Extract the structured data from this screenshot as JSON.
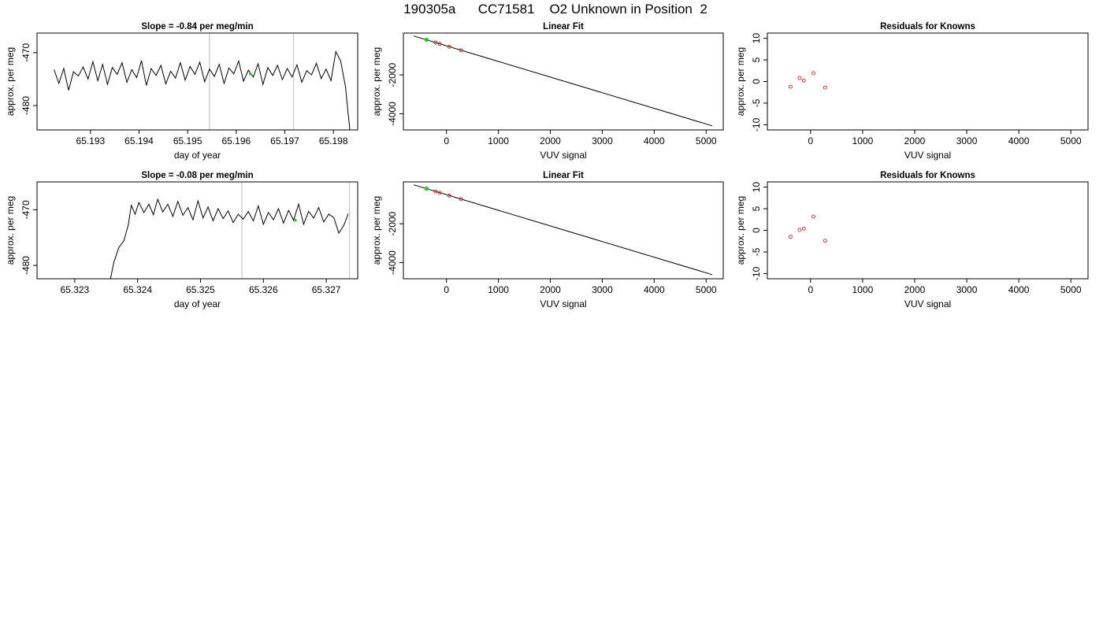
{
  "page_title": "190305a      CC71581    O2 Unknown in Position  2",
  "colors": {
    "line": "#000000",
    "frame": "#000000",
    "marker_lines": "#c8c8c8",
    "points_known": "#cc2222",
    "point_unknown": "#22cc22"
  },
  "chart_data": [
    {
      "type": "line",
      "title": "Slope =  -0.84  per meg/min",
      "xlabel": "day of year",
      "ylabel": "approx. per meg",
      "xlim": [
        65.1919,
        65.1985
      ],
      "ylim": [
        -484.6,
        -466.3
      ],
      "xticks": [
        "65.193",
        "65.194",
        "65.195",
        "65.196",
        "65.197",
        "65.198"
      ],
      "yticks": [
        "-480",
        "-470"
      ],
      "vlines": [
        65.19545,
        65.19718
      ],
      "highlight_point": {
        "x": 65.19629,
        "y": -474.0
      },
      "grid": false,
      "series": [
        {
          "values": [
            [
              65.19225,
              -473.2
            ],
            [
              65.19235,
              -475.8
            ],
            [
              65.19245,
              -473.0
            ],
            [
              65.19255,
              -477.1
            ],
            [
              65.19265,
              -473.6
            ],
            [
              65.19275,
              -474.4
            ],
            [
              65.19285,
              -472.7
            ],
            [
              65.19295,
              -475.0
            ],
            [
              65.19305,
              -471.7
            ],
            [
              65.19315,
              -475.3
            ],
            [
              65.19325,
              -472.2
            ],
            [
              65.19335,
              -476.0
            ],
            [
              65.19345,
              -472.8
            ],
            [
              65.19355,
              -474.1
            ],
            [
              65.19365,
              -471.9
            ],
            [
              65.19375,
              -475.6
            ],
            [
              65.19385,
              -473.2
            ],
            [
              65.19395,
              -474.7
            ],
            [
              65.19405,
              -471.5
            ],
            [
              65.19415,
              -476.2
            ],
            [
              65.19425,
              -473.0
            ],
            [
              65.19435,
              -474.3
            ],
            [
              65.19445,
              -472.4
            ],
            [
              65.19455,
              -475.9
            ],
            [
              65.19465,
              -473.5
            ],
            [
              65.19475,
              -474.8
            ],
            [
              65.19485,
              -471.9
            ],
            [
              65.19495,
              -475.2
            ],
            [
              65.19505,
              -472.6
            ],
            [
              65.19515,
              -474.1
            ],
            [
              65.19525,
              -471.8
            ],
            [
              65.19535,
              -475.5
            ],
            [
              65.19545,
              -473.1
            ],
            [
              65.19555,
              -474.5
            ],
            [
              65.19565,
              -472.2
            ],
            [
              65.19575,
              -475.8
            ],
            [
              65.19585,
              -472.9
            ],
            [
              65.19595,
              -474.0
            ],
            [
              65.19605,
              -471.6
            ],
            [
              65.19615,
              -475.4
            ],
            [
              65.19625,
              -473.3
            ],
            [
              65.19635,
              -474.6
            ],
            [
              65.19645,
              -472.1
            ],
            [
              65.19655,
              -476.0
            ],
            [
              65.19665,
              -472.8
            ],
            [
              65.19675,
              -474.3
            ],
            [
              65.19685,
              -472.4
            ],
            [
              65.19695,
              -475.1
            ],
            [
              65.19705,
              -473.0
            ],
            [
              65.19715,
              -474.6
            ],
            [
              65.19725,
              -472.3
            ],
            [
              65.19735,
              -475.6
            ],
            [
              65.19745,
              -473.4
            ],
            [
              65.19755,
              -474.2
            ],
            [
              65.19765,
              -472.0
            ],
            [
              65.19775,
              -474.9
            ],
            [
              65.19785,
              -473.1
            ],
            [
              65.19795,
              -475.3
            ],
            [
              65.19805,
              -469.8
            ],
            [
              65.19815,
              -471.6
            ],
            [
              65.19825,
              -476.5
            ],
            [
              65.1983,
              -481.2
            ],
            [
              65.19835,
              -485.5
            ]
          ]
        }
      ]
    },
    {
      "type": "scatter",
      "title": "Linear Fit",
      "xlabel": "VUV signal",
      "ylabel": "approx. per meg",
      "xlim": [
        -830,
        5330
      ],
      "ylim": [
        -4830,
        150
      ],
      "xticks": [
        "0",
        "1000",
        "2000",
        "3000",
        "4000",
        "5000"
      ],
      "yticks": [
        "-4000",
        "-2000"
      ],
      "fit_line": [
        [
          -630,
          0
        ],
        [
          5120,
          -4620
        ]
      ],
      "known_points": [
        [
          -385,
          -200
        ],
        [
          -210,
          -340
        ],
        [
          -130,
          -405
        ],
        [
          55,
          -555
        ],
        [
          280,
          -735
        ]
      ],
      "unknown_point": [
        -380,
        -190
      ],
      "grid": false
    },
    {
      "type": "scatter",
      "title": "Residuals for Knowns",
      "xlabel": "VUV signal",
      "ylabel": "approx. per meg",
      "xlim": [
        -830,
        5330
      ],
      "ylim": [
        -11.2,
        11.2
      ],
      "xticks": [
        "0",
        "1000",
        "2000",
        "3000",
        "4000",
        "5000"
      ],
      "yticks": [
        "-10",
        "-5",
        "0",
        "5",
        "10"
      ],
      "points": [
        [
          -385,
          -1.2
        ],
        [
          -210,
          0.8
        ],
        [
          -130,
          0.2
        ],
        [
          55,
          1.9
        ],
        [
          280,
          -1.4
        ]
      ],
      "grid": false
    },
    {
      "type": "line",
      "title": "Slope =  -0.08  per meg/min",
      "xlabel": "day of year",
      "ylabel": "approx. per meg",
      "xlim": [
        65.3224,
        65.3275
      ],
      "ylim": [
        -482.4,
        -465.0
      ],
      "xticks": [
        "65.323",
        "65.324",
        "65.325",
        "65.326",
        "65.327"
      ],
      "yticks": [
        "-480",
        "-470"
      ],
      "vlines": [
        65.32566,
        65.32737
      ],
      "highlight_point": {
        "x": 65.32651,
        "y": -471.9
      },
      "grid": false,
      "series": [
        {
          "values": [
            [
              65.32355,
              -483.5
            ],
            [
              65.32362,
              -479.5
            ],
            [
              65.3237,
              -476.8
            ],
            [
              65.32378,
              -475.6
            ],
            [
              65.32385,
              -472.8
            ],
            [
              65.3239,
              -469.2
            ],
            [
              65.32396,
              -470.8
            ],
            [
              65.32402,
              -468.7
            ],
            [
              65.3241,
              -470.5
            ],
            [
              65.32418,
              -469.0
            ],
            [
              65.32425,
              -470.9
            ],
            [
              65.32432,
              -468.1
            ],
            [
              65.3244,
              -470.4
            ],
            [
              65.32448,
              -469.0
            ],
            [
              65.32456,
              -471.2
            ],
            [
              65.32464,
              -468.5
            ],
            [
              65.32472,
              -471.0
            ],
            [
              65.3248,
              -469.6
            ],
            [
              65.32488,
              -471.8
            ],
            [
              65.32496,
              -468.4
            ],
            [
              65.32504,
              -471.5
            ],
            [
              65.32512,
              -469.5
            ],
            [
              65.3252,
              -472.0
            ],
            [
              65.32528,
              -469.8
            ],
            [
              65.32536,
              -471.6
            ],
            [
              65.32544,
              -470.2
            ],
            [
              65.32552,
              -472.3
            ],
            [
              65.3256,
              -470.8
            ],
            [
              65.32568,
              -471.7
            ],
            [
              65.32576,
              -470.3
            ],
            [
              65.32584,
              -472.0
            ],
            [
              65.32592,
              -469.3
            ],
            [
              65.326,
              -472.6
            ],
            [
              65.32608,
              -470.5
            ],
            [
              65.32616,
              -471.8
            ],
            [
              65.32624,
              -469.8
            ],
            [
              65.32632,
              -472.4
            ],
            [
              65.3264,
              -470.1
            ],
            [
              65.32648,
              -471.9
            ],
            [
              65.32656,
              -469.0
            ],
            [
              65.32664,
              -472.6
            ],
            [
              65.32672,
              -470.3
            ],
            [
              65.3268,
              -471.5
            ],
            [
              65.32688,
              -469.6
            ],
            [
              65.32696,
              -472.2
            ],
            [
              65.32704,
              -470.8
            ],
            [
              65.32712,
              -471.4
            ],
            [
              65.3272,
              -474.2
            ],
            [
              65.32728,
              -472.8
            ],
            [
              65.32735,
              -470.7
            ]
          ]
        }
      ]
    },
    {
      "type": "scatter",
      "title": "Linear Fit",
      "xlabel": "VUV signal",
      "ylabel": "approx. per meg",
      "xlim": [
        -830,
        5330
      ],
      "ylim": [
        -4830,
        150
      ],
      "xticks": [
        "0",
        "1000",
        "2000",
        "3000",
        "4000",
        "5000"
      ],
      "yticks": [
        "-4000",
        "-2000"
      ],
      "fit_line": [
        [
          -630,
          0
        ],
        [
          5120,
          -4620
        ]
      ],
      "known_points": [
        [
          -385,
          -200
        ],
        [
          -210,
          -340
        ],
        [
          -130,
          -405
        ],
        [
          55,
          -555
        ],
        [
          280,
          -735
        ]
      ],
      "unknown_point": [
        -380,
        -190
      ],
      "grid": false
    },
    {
      "type": "scatter",
      "title": "Residuals for Knowns",
      "xlabel": "VUV signal",
      "ylabel": "approx. per meg",
      "xlim": [
        -830,
        5330
      ],
      "ylim": [
        -11.2,
        11.2
      ],
      "xticks": [
        "0",
        "1000",
        "2000",
        "3000",
        "4000",
        "5000"
      ],
      "yticks": [
        "-10",
        "-5",
        "0",
        "5",
        "10"
      ],
      "points": [
        [
          -385,
          -1.5
        ],
        [
          -210,
          0.1
        ],
        [
          -130,
          0.4
        ],
        [
          55,
          3.2
        ],
        [
          280,
          -2.4
        ]
      ],
      "grid": false
    }
  ]
}
